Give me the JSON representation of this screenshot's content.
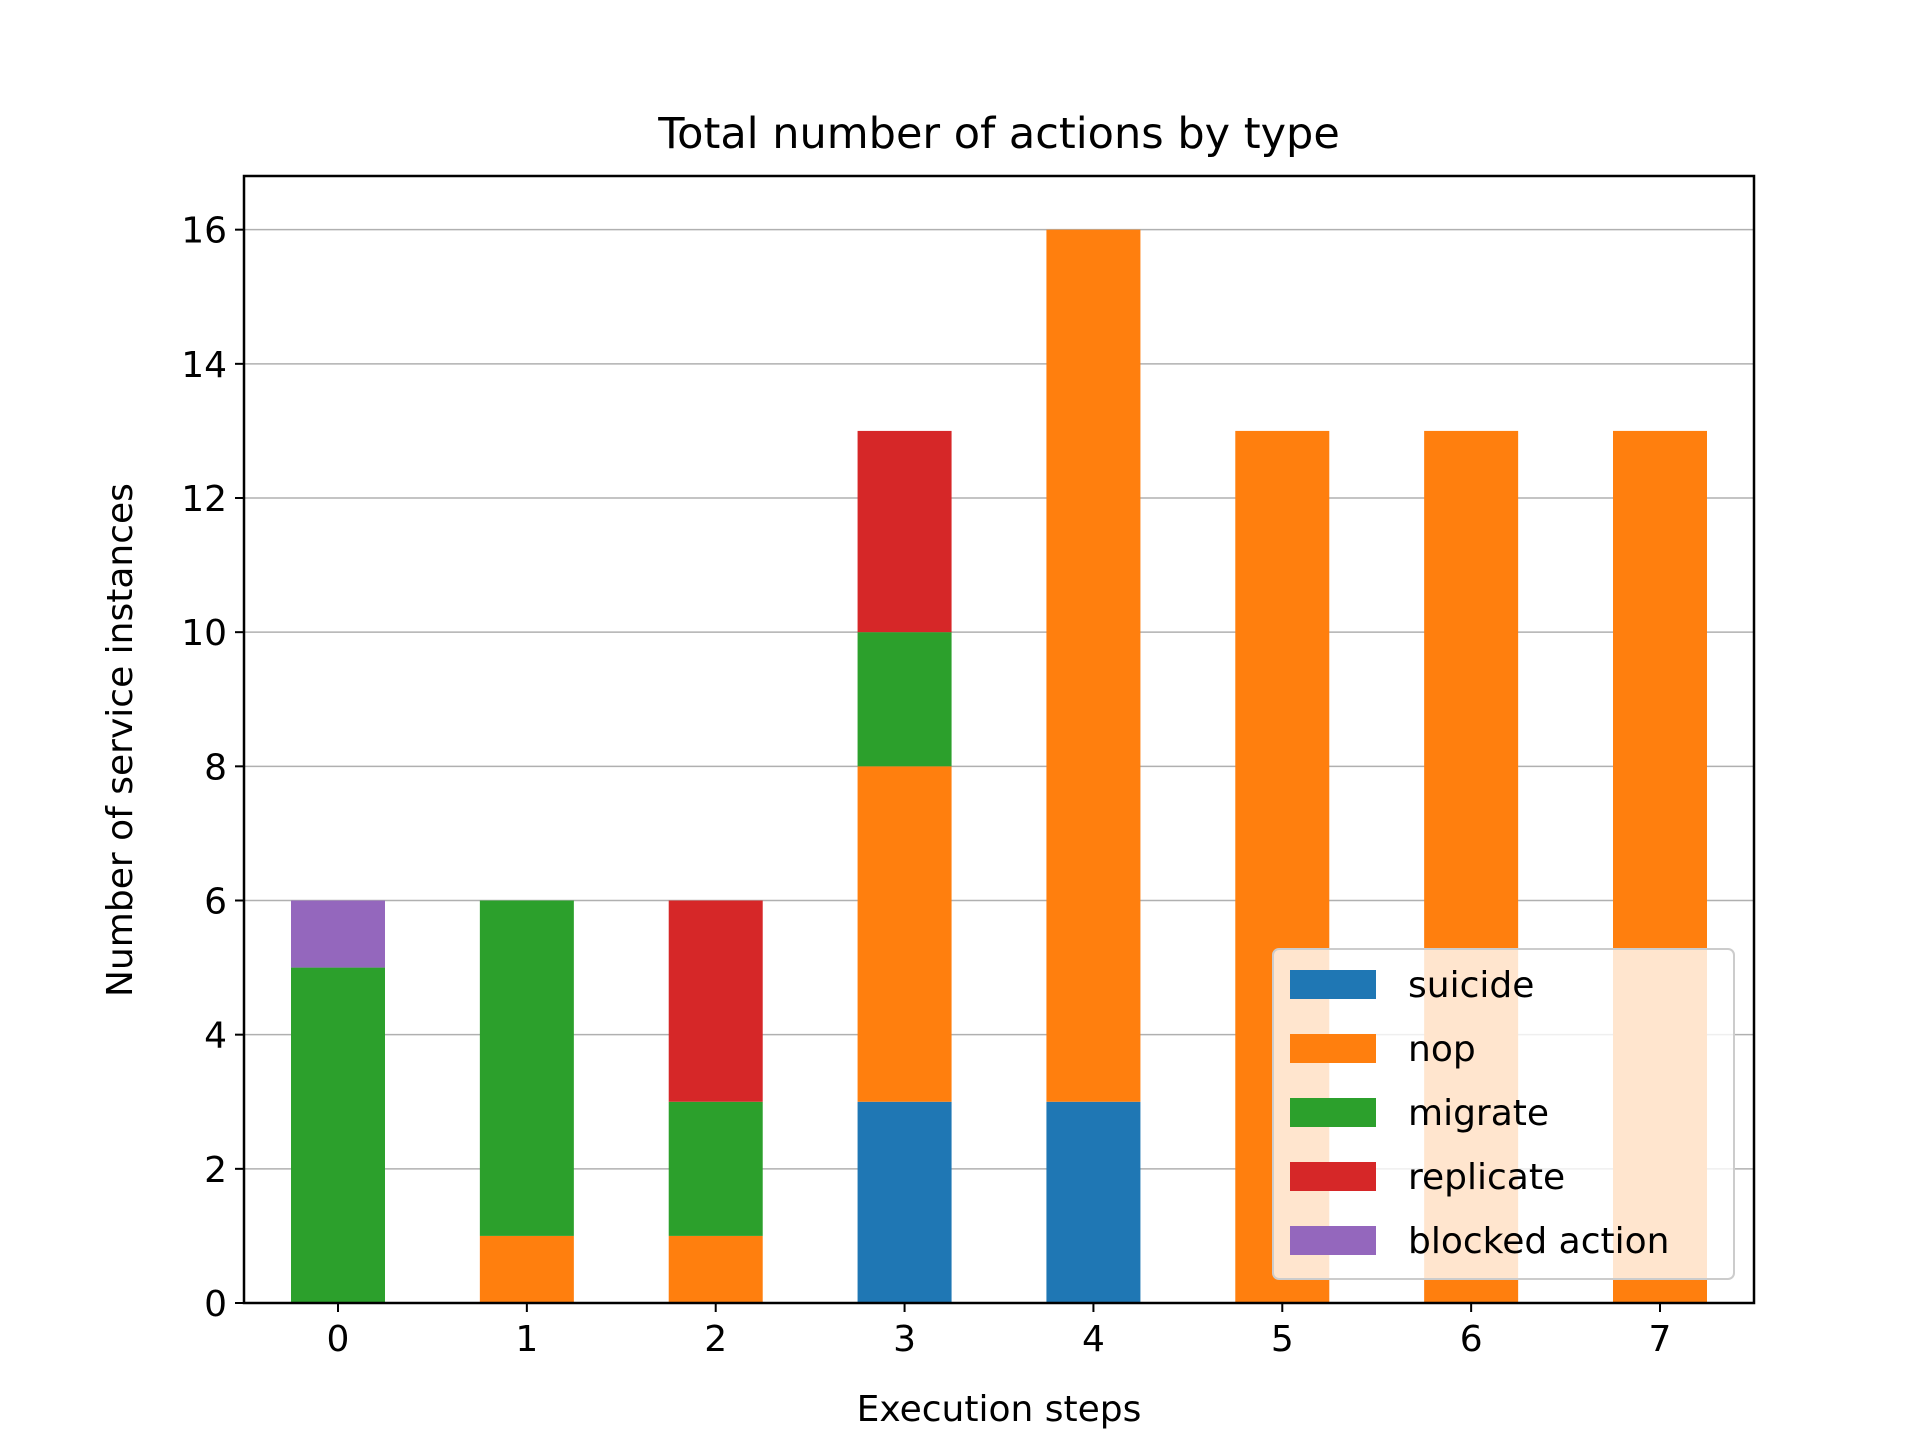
{
  "chart_data": {
    "type": "bar",
    "stacked": true,
    "title": "Total number of actions by type",
    "xlabel": "Execution steps",
    "ylabel": "Number of service instances",
    "categories": [
      "0",
      "1",
      "2",
      "3",
      "4",
      "5",
      "6",
      "7"
    ],
    "ylim": [
      0,
      16.8
    ],
    "yticks": [
      0,
      2,
      4,
      6,
      8,
      10,
      12,
      14,
      16
    ],
    "grid": "horizontal",
    "legend_position": "lower-right",
    "series": [
      {
        "name": "suicide",
        "color": "#1f77b4",
        "values": [
          0,
          0,
          0,
          3,
          3,
          0,
          0,
          0
        ]
      },
      {
        "name": "nop",
        "color": "#ff7f0e",
        "values": [
          0,
          1,
          1,
          5,
          13,
          13,
          13,
          13
        ]
      },
      {
        "name": "migrate",
        "color": "#2ca02c",
        "values": [
          5,
          5,
          2,
          2,
          0,
          0,
          0,
          0
        ]
      },
      {
        "name": "replicate",
        "color": "#d62728",
        "values": [
          0,
          0,
          3,
          3,
          0,
          0,
          0,
          0
        ]
      },
      {
        "name": "blocked action",
        "color": "#9467bd",
        "values": [
          1,
          0,
          0,
          0,
          0,
          0,
          0,
          0
        ]
      }
    ]
  }
}
